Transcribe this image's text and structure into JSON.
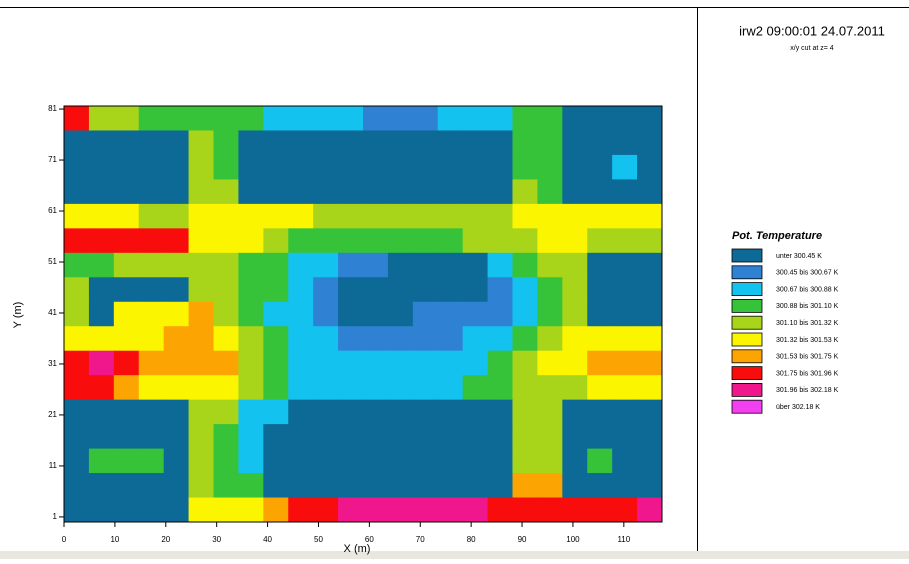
{
  "chart_data": {
    "type": "heatmap",
    "title": "irw2 09:00:01 24.07.2011",
    "subtitle": "x/y cut at z= 4",
    "xlabel": "X (m)",
    "ylabel": "Y (m)",
    "xlim": [
      0,
      117.5
    ],
    "ylim": [
      0,
      81.6
    ],
    "xticks": [
      0,
      10,
      20,
      30,
      40,
      50,
      60,
      70,
      80,
      90,
      100,
      110
    ],
    "yticks": [
      1,
      11,
      21,
      31,
      41,
      51,
      61,
      71,
      81
    ],
    "z": [
      [
        7,
        4,
        4,
        3,
        3,
        3,
        3,
        3,
        2,
        2,
        2,
        2,
        1,
        1,
        1,
        2,
        2,
        2,
        3,
        3,
        0,
        0,
        0,
        0
      ],
      [
        0,
        0,
        0,
        0,
        0,
        4,
        3,
        0,
        0,
        0,
        0,
        0,
        0,
        0,
        0,
        0,
        0,
        0,
        3,
        3,
        0,
        0,
        0,
        0
      ],
      [
        0,
        0,
        0,
        0,
        0,
        4,
        3,
        0,
        0,
        0,
        0,
        0,
        0,
        0,
        0,
        0,
        0,
        0,
        3,
        3,
        0,
        0,
        2,
        0
      ],
      [
        0,
        0,
        0,
        0,
        0,
        4,
        4,
        0,
        0,
        0,
        0,
        0,
        0,
        0,
        0,
        0,
        0,
        0,
        4,
        3,
        0,
        0,
        0,
        0
      ],
      [
        5,
        5,
        5,
        4,
        4,
        5,
        5,
        5,
        5,
        5,
        4,
        4,
        4,
        4,
        4,
        4,
        4,
        4,
        5,
        5,
        5,
        5,
        5,
        5
      ],
      [
        7,
        7,
        7,
        7,
        7,
        5,
        5,
        5,
        4,
        3,
        3,
        3,
        3,
        3,
        3,
        3,
        4,
        4,
        4,
        5,
        5,
        4,
        4,
        4
      ],
      [
        3,
        3,
        4,
        4,
        4,
        4,
        4,
        3,
        3,
        2,
        2,
        1,
        1,
        0,
        0,
        0,
        0,
        2,
        3,
        4,
        4,
        0,
        0,
        0
      ],
      [
        4,
        0,
        0,
        0,
        0,
        4,
        4,
        3,
        3,
        2,
        1,
        0,
        0,
        0,
        0,
        0,
        0,
        1,
        2,
        3,
        4,
        0,
        0,
        0
      ],
      [
        4,
        0,
        5,
        5,
        5,
        6,
        4,
        3,
        2,
        2,
        1,
        0,
        0,
        0,
        1,
        1,
        1,
        1,
        2,
        3,
        4,
        0,
        0,
        0
      ],
      [
        5,
        5,
        5,
        5,
        6,
        6,
        5,
        4,
        3,
        2,
        2,
        1,
        1,
        1,
        1,
        1,
        2,
        2,
        3,
        4,
        5,
        5,
        5,
        5
      ],
      [
        7,
        8,
        7,
        6,
        6,
        6,
        6,
        4,
        3,
        2,
        2,
        2,
        2,
        2,
        2,
        2,
        2,
        3,
        4,
        5,
        5,
        6,
        6,
        6
      ],
      [
        7,
        7,
        6,
        5,
        5,
        5,
        5,
        4,
        3,
        2,
        2,
        2,
        2,
        2,
        2,
        2,
        3,
        3,
        4,
        4,
        4,
        5,
        5,
        5
      ],
      [
        0,
        0,
        0,
        0,
        0,
        4,
        4,
        2,
        2,
        0,
        0,
        0,
        0,
        0,
        0,
        0,
        0,
        0,
        4,
        4,
        0,
        0,
        0,
        0
      ],
      [
        0,
        0,
        0,
        0,
        0,
        4,
        3,
        2,
        0,
        0,
        0,
        0,
        0,
        0,
        0,
        0,
        0,
        0,
        4,
        4,
        0,
        0,
        0,
        0
      ],
      [
        0,
        3,
        3,
        3,
        0,
        4,
        3,
        2,
        0,
        0,
        0,
        0,
        0,
        0,
        0,
        0,
        0,
        0,
        4,
        4,
        0,
        3,
        0,
        0
      ],
      [
        0,
        0,
        0,
        0,
        0,
        4,
        3,
        3,
        0,
        0,
        0,
        0,
        0,
        0,
        0,
        0,
        0,
        0,
        6,
        6,
        0,
        0,
        0,
        0
      ],
      [
        0,
        0,
        0,
        0,
        0,
        5,
        5,
        5,
        6,
        7,
        7,
        8,
        8,
        8,
        8,
        8,
        8,
        7,
        7,
        7,
        7,
        7,
        7,
        8
      ]
    ],
    "legend": {
      "title": "Pot. Temperature",
      "entries": [
        {
          "label": "unter 300.45 K",
          "color": "#0d6a96"
        },
        {
          "label": "300.45 bis 300.67 K",
          "color": "#2f82d3"
        },
        {
          "label": "300.67 bis 300.88 K",
          "color": "#14c2f0"
        },
        {
          "label": "300.88 bis 301.10 K",
          "color": "#36c339"
        },
        {
          "label": "301.10 bis 301.32 K",
          "color": "#a8d51a"
        },
        {
          "label": "301.32 bis 301.53 K",
          "color": "#fbf500"
        },
        {
          "label": "301.53 bis 301.75 K",
          "color": "#fca402"
        },
        {
          "label": "301.75 bis 301.96 K",
          "color": "#f90c0c"
        },
        {
          "label": "301.96 bis 302.18 K",
          "color": "#f0168c"
        },
        {
          "label": "über 302.18 K",
          "color": "#f23ff0"
        }
      ]
    }
  }
}
